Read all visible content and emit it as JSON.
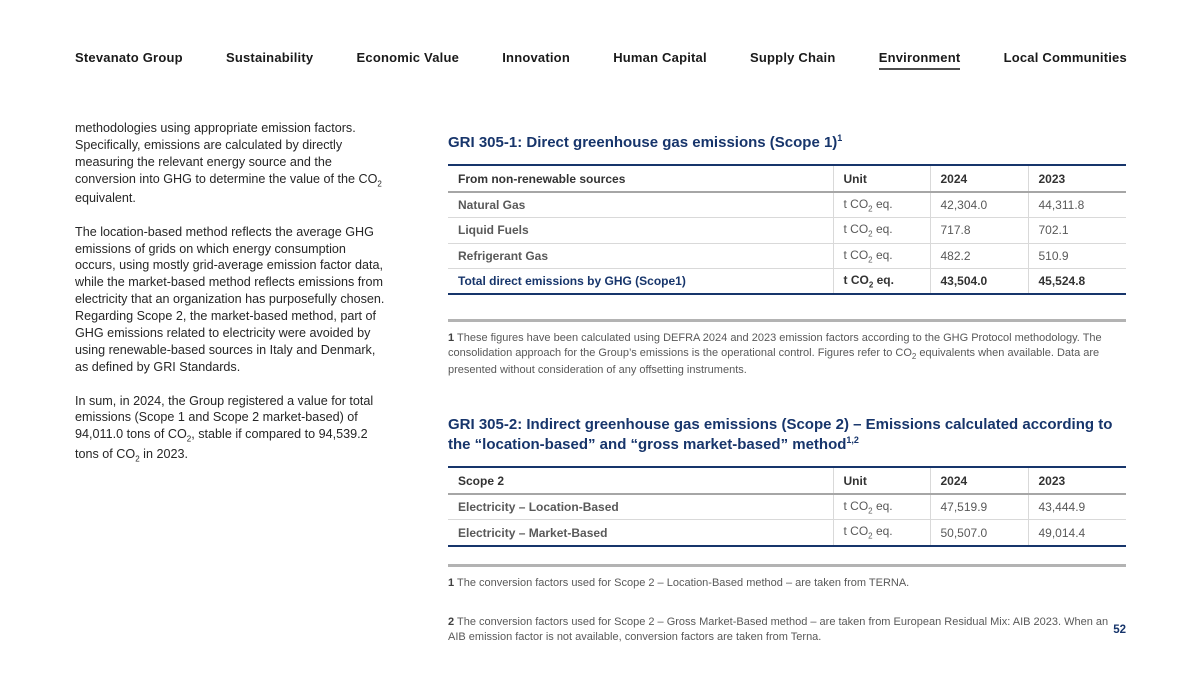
{
  "nav": {
    "items": [
      {
        "label": "Stevanato Group",
        "active": false
      },
      {
        "label": "Sustainability",
        "active": false
      },
      {
        "label": "Economic Value",
        "active": false
      },
      {
        "label": "Innovation",
        "active": false
      },
      {
        "label": "Human Capital",
        "active": false
      },
      {
        "label": "Supply Chain",
        "active": false
      },
      {
        "label": "Environment",
        "active": true
      },
      {
        "label": "Local Communities",
        "active": false
      }
    ]
  },
  "article": {
    "paragraphs": [
      "methodologies using appropriate emission factors. Specifically, emissions are calculated by directly measuring the relevant energy source and the conversion into GHG to determine the value of the CO₂ equivalent.",
      "The location-based method reflects the average GHG emissions of grids on which energy consumption occurs, using mostly grid-average emission factor data, while the market-based method reflects emissions from electricity that an organization has purposefully chosen. Regarding Scope 2, the market-based method, part of GHG emissions related to electricity were avoided by using renewable-based sources in Italy and Denmark, as defined by GRI Standards.",
      "In sum, in 2024, the Group registered a value for total emissions (Scope 1 and Scope 2 market-based) of 94,011.0 tons of CO₂, stable if compared to 94,539.2 tons of CO₂ in 2023."
    ]
  },
  "sections": [
    {
      "title": "GRI 305-1: Direct greenhouse gas emissions (Scope 1)",
      "title_sup": "1",
      "columns": [
        "From non-renewable sources",
        "Unit",
        "2024",
        "2023"
      ],
      "rows": [
        {
          "label": "Natural Gas",
          "unit": "t CO₂ eq.",
          "y2024": "42,304.0",
          "y2023": "44,311.8"
        },
        {
          "label": "Liquid Fuels",
          "unit": "t CO₂ eq.",
          "y2024": "717.8",
          "y2023": "702.1"
        },
        {
          "label": "Refrigerant Gas",
          "unit": "t CO₂ eq.",
          "y2024": "482.2",
          "y2023": "510.9"
        },
        {
          "label": "Total direct emissions by GHG (Scope1)",
          "unit": "t CO₂ eq.",
          "y2024": "43,504.0",
          "y2023": "45,524.8"
        }
      ],
      "footnotes": [
        {
          "num": "1",
          "text": "These figures have been calculated using DEFRA 2024 and 2023 emission factors according to the GHG Protocol methodology. The consolidation approach for the Group’s emissions is the operational control. Figures refer to CO₂ equivalents when available. Data are presented without consideration of any offsetting instruments."
        }
      ]
    },
    {
      "title": "GRI 305-2: Indirect greenhouse gas emissions (Scope 2) – Emissions calculated according to the “location-based” and “gross market-based” method",
      "title_sup": "1,2",
      "columns": [
        "Scope 2",
        "Unit",
        "2024",
        "2023"
      ],
      "rows": [
        {
          "label": "Electricity – Location-Based",
          "unit": "t CO₂ eq.",
          "y2024": "47,519.9",
          "y2023": "43,444.9"
        },
        {
          "label": "Electricity – Market-Based",
          "unit": "t CO₂ eq.",
          "y2024": "50,507.0",
          "y2023": "49,014.4"
        }
      ],
      "footnotes": [
        {
          "num": "1",
          "text": "The conversion factors used for Scope 2 – Location-Based method – are taken from TERNA."
        },
        {
          "num": "2",
          "text": "The conversion factors used for Scope 2 – Gross Market-Based method – are taken from European Residual Mix: AIB 2023. When an AIB emission factor is not available, conversion factors are taken from Terna."
        }
      ]
    }
  ],
  "page": {
    "number": "52"
  },
  "colors": {
    "navy": "#17356b",
    "text_gray": "#595959",
    "body_text": "#262626",
    "divider_gray": "#d9d9d9",
    "separator_gray": "#b3b3b3"
  }
}
